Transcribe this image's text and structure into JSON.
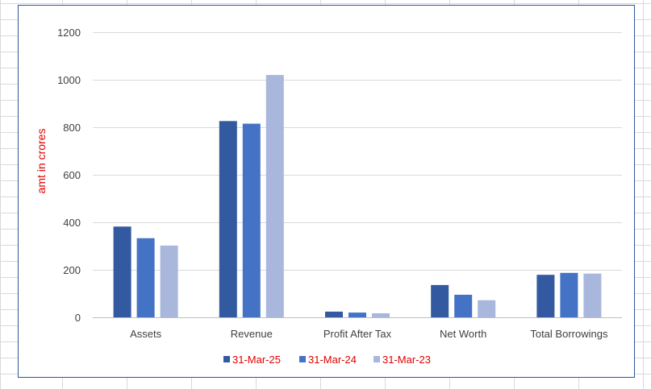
{
  "chart_data": {
    "type": "bar",
    "title": "",
    "xlabel": "",
    "ylabel": "amt in crores",
    "ylim": [
      0,
      1200
    ],
    "yticks": [
      0,
      200,
      400,
      600,
      800,
      1000,
      1200
    ],
    "grid": true,
    "legend_position": "bottom",
    "categories": [
      "Assets",
      "Revenue",
      "Profit After Tax",
      "Net Worth",
      "Total Borrowings"
    ],
    "series": [
      {
        "name": "31-Mar-25",
        "color": "#335aa0",
        "values": [
          382,
          826,
          24,
          136,
          179
        ]
      },
      {
        "name": "31-Mar-24",
        "color": "#4472c4",
        "values": [
          333,
          815,
          20,
          95,
          187
        ]
      },
      {
        "name": "31-Mar-23",
        "color": "#a9b7dc",
        "values": [
          302,
          1020,
          17,
          72,
          184
        ]
      }
    ]
  }
}
